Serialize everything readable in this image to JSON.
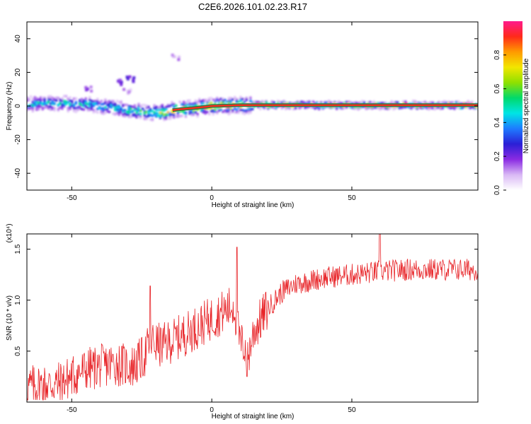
{
  "title": "C2E6.2026.101.02.23.R17",
  "chart_data": [
    {
      "type": "heatmap",
      "xlabel": "Height of straight line (km)",
      "ylabel": "Frequency (Hz)",
      "xlim": [
        -66,
        95
      ],
      "ylim": [
        -50,
        50
      ],
      "xticks": [
        -50,
        0,
        50
      ],
      "yticks": [
        -40,
        -20,
        0,
        20,
        40
      ],
      "ridge": {
        "x": [
          -66,
          -55,
          -45,
          -35,
          -28,
          -20,
          -12,
          -5,
          0,
          10,
          20,
          40,
          60,
          95
        ],
        "freq": [
          1,
          2,
          1,
          -1,
          -3,
          -4,
          -2,
          -1,
          0,
          0.5,
          0.5,
          0.5,
          0.5,
          0.5
        ],
        "amplitude": [
          0.45,
          0.5,
          0.45,
          0.5,
          0.55,
          0.6,
          0.9,
          0.7,
          0.9,
          0.85,
          0.9,
          0.95,
          0.95,
          0.95
        ]
      },
      "outliers": [
        {
          "x": -44,
          "freq": 10,
          "amplitude": 0.1
        },
        {
          "x": -33,
          "freq": 14,
          "amplitude": 0.15
        },
        {
          "x": -29,
          "freq": 16,
          "amplitude": 0.15
        },
        {
          "x": -13,
          "freq": 29,
          "amplitude": 0.05
        },
        {
          "x": -30,
          "freq": 9,
          "amplitude": 0.05
        }
      ],
      "colorbar": {
        "label": "Normalized spectral amplitude",
        "range": [
          0,
          1
        ],
        "ticks": [
          "0.0",
          "0.2",
          "0.4",
          "0.6",
          "0.8"
        ],
        "colors": [
          "#ffffff",
          "#d9b8f5",
          "#8a2be2",
          "#2b1fd6",
          "#1e7bff",
          "#00e5e5",
          "#00d96b",
          "#8fe000",
          "#f2e600",
          "#ff9a00",
          "#ff2a1a",
          "#ff1a8c"
        ]
      }
    },
    {
      "type": "line",
      "xlabel": "Height of straight line (km)",
      "ylabel": "SNR (10 * v/v)",
      "y_multiplier": "(x10⁴)",
      "xlim": [
        -66,
        95
      ],
      "ylim": [
        0,
        1.65
      ],
      "xticks": [
        -50,
        0,
        50
      ],
      "yticks": [
        "0.5",
        "1.0",
        "1.5"
      ],
      "color": "#e8262a",
      "trend": {
        "x": [
          -66,
          -55,
          -45,
          -35,
          -28,
          -24,
          -22,
          -18,
          -10,
          0,
          5,
          8,
          10,
          12,
          13,
          15,
          20,
          25,
          30,
          40,
          50,
          60,
          70,
          80,
          95
        ],
        "y": [
          0.15,
          0.18,
          0.32,
          0.38,
          0.35,
          0.45,
          0.6,
          0.55,
          0.66,
          0.82,
          0.9,
          0.95,
          0.58,
          0.55,
          0.45,
          0.7,
          0.92,
          1.08,
          1.16,
          1.22,
          1.25,
          1.28,
          1.3,
          1.3,
          1.3
        ]
      },
      "spikes": [
        {
          "x": -22,
          "y": 1.14
        },
        {
          "x": 9,
          "y": 1.52
        },
        {
          "x": 60,
          "y": 1.65
        },
        {
          "x": 12.5,
          "y": 0.25
        }
      ]
    }
  ]
}
